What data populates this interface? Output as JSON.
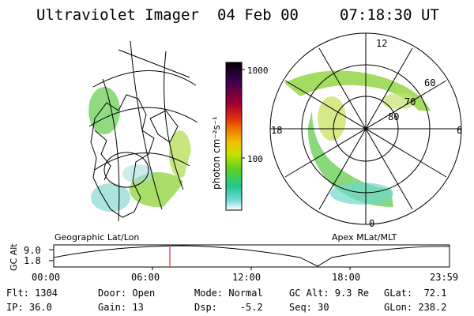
{
  "header": {
    "instrument": "Ultraviolet Imager",
    "date": "04 Feb 00",
    "time": "07:18:30 UT"
  },
  "colorbar": {
    "ticks": [
      "1000",
      "100"
    ],
    "unit_label": "photon cm⁻²s⁻¹"
  },
  "map_labels": {
    "geo": "Geographic Lat/Lon",
    "apex": "Apex  MLat/MLT"
  },
  "polar": {
    "lat_labels": [
      "60",
      "70",
      "80"
    ],
    "mlt_labels": {
      "top": "12",
      "left": "18",
      "right": "6",
      "bottom": "0"
    }
  },
  "altitude_plot": {
    "ylabel": "GC Alt",
    "yticks": [
      "9.0",
      "1.8"
    ],
    "xticks": [
      "00:00",
      "06:00",
      "12:00",
      "18:00",
      "23:59"
    ]
  },
  "status": {
    "flt": "Flt: 1304",
    "ip": "IP: 36.0",
    "door": "Door: Open",
    "gain": "Gain: 13",
    "mode": "Mode: Normal",
    "dsp": "Dsp:    -5.2",
    "gcalt": "GC Alt: 9.3 Re",
    "seq": "Seq: 30",
    "glat": "GLat:  72.1",
    "glon": "GLon: 238.2"
  },
  "colors": {
    "colorbar_stops": [
      "#000000",
      "#3a0050",
      "#a00030",
      "#e03010",
      "#f08000",
      "#f0c000",
      "#c8e000",
      "#60d020",
      "#20c890",
      "#70d8d8",
      "#ffffff"
    ],
    "time_marker": "#d03030"
  }
}
